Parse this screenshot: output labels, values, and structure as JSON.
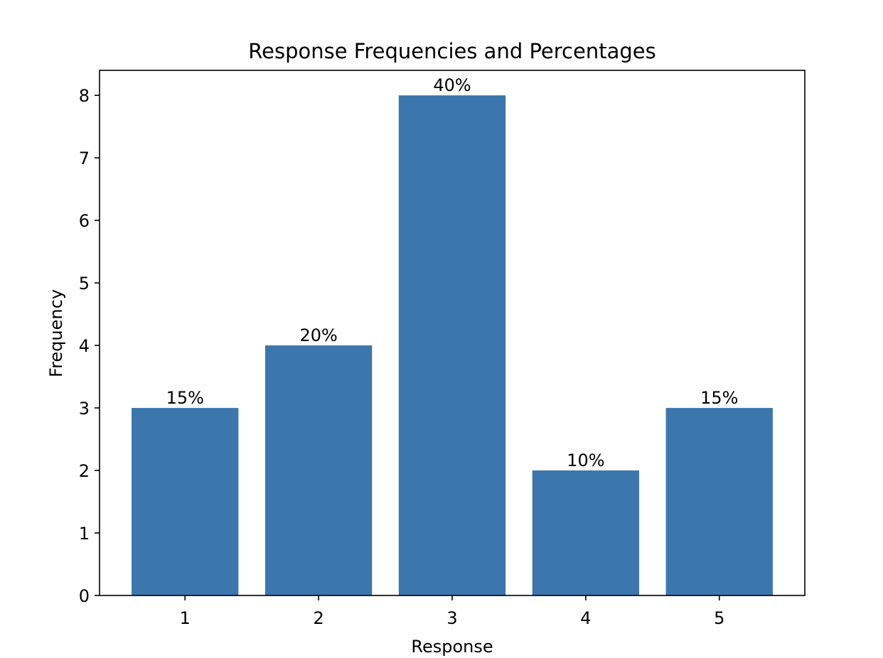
{
  "chart_data": {
    "type": "bar",
    "title": "Response Frequencies and Percentages",
    "xlabel": "Response",
    "ylabel": "Frequency",
    "categories": [
      "1",
      "2",
      "3",
      "4",
      "5"
    ],
    "values": [
      3,
      4,
      8,
      2,
      3
    ],
    "data_labels": [
      "15%",
      "20%",
      "40%",
      "10%",
      "15%"
    ],
    "ylim": [
      0,
      8.4
    ],
    "yticks": [
      0,
      1,
      2,
      3,
      4,
      5,
      6,
      7,
      8
    ],
    "bar_color": "#3b76ad",
    "grid": false,
    "legend": "none"
  }
}
